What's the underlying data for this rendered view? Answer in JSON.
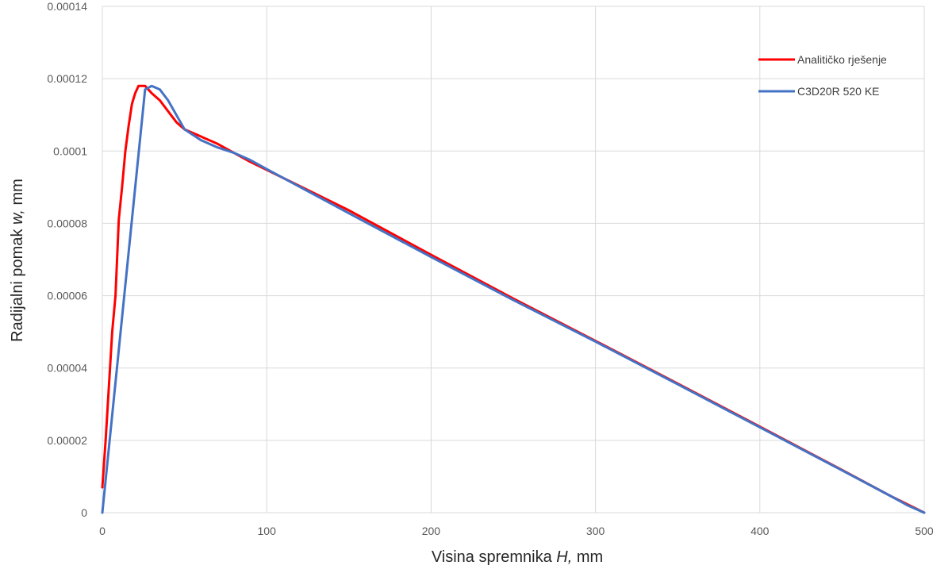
{
  "chart_data": {
    "type": "line",
    "title": "",
    "xlabel_prefix": "Visina spremnika ",
    "xlabel_var": "H,",
    "xlabel_suffix": " mm",
    "ylabel_prefix": "Radijalni pomak ",
    "ylabel_var": "w,",
    "ylabel_suffix": " mm",
    "xlim": [
      0,
      500
    ],
    "ylim": [
      0,
      0.00014
    ],
    "x_ticks": [
      0,
      100,
      200,
      300,
      400,
      500
    ],
    "x_tick_labels": [
      "0",
      "100",
      "200",
      "300",
      "400",
      "500"
    ],
    "y_ticks": [
      0,
      2e-05,
      4e-05,
      6e-05,
      8e-05,
      0.0001,
      0.00012,
      0.00014
    ],
    "y_tick_labels": [
      "0",
      "0.00002",
      "0.00004",
      "0.00006",
      "0.00008",
      "0.0001",
      "0.00012",
      "0.00014"
    ],
    "grid": true,
    "legend_position": "top-right",
    "series": [
      {
        "name": "Analitičko rješenje",
        "color": "#ff0000",
        "x": [
          0,
          2,
          4,
          6,
          8,
          10,
          12,
          14,
          16,
          18,
          20,
          22,
          24,
          26,
          28,
          30,
          35,
          40,
          45,
          50,
          55,
          60,
          70,
          80,
          90,
          100,
          150,
          200,
          250,
          300,
          350,
          400,
          450,
          480,
          500
        ],
        "y": [
          7e-06,
          2e-05,
          3.5e-05,
          5e-05,
          6e-05,
          8.1e-05,
          9e-05,
          0.0001,
          0.000107,
          0.000113,
          0.000116,
          0.000118,
          0.000118,
          0.000118,
          0.000117,
          0.000116,
          0.000114,
          0.000111,
          0.000108,
          0.000106,
          0.000105,
          0.000104,
          0.000102,
          9.95e-05,
          9.7e-05,
          9.48e-05,
          8.36e-05,
          7.13e-05,
          5.92e-05,
          4.75e-05,
          3.57e-05,
          2.38e-05,
          1.18e-05,
          4.5e-06,
          0
        ]
      },
      {
        "name": "C3D20R 520 KE",
        "color": "#4472c4",
        "x": [
          0,
          26,
          30,
          35,
          40,
          45,
          50,
          60,
          70,
          80,
          90,
          100,
          150,
          200,
          250,
          300,
          350,
          400,
          450,
          480,
          490,
          500
        ],
        "y": [
          0,
          0.000117,
          0.000118,
          0.000117,
          0.000114,
          0.00011,
          0.000106,
          0.000103,
          0.000101,
          9.95e-05,
          9.75e-05,
          9.5e-05,
          8.28e-05,
          7.07e-05,
          5.88e-05,
          4.73e-05,
          3.55e-05,
          2.36e-05,
          1.17e-05,
          4.5e-06,
          2e-06,
          0
        ]
      }
    ]
  }
}
